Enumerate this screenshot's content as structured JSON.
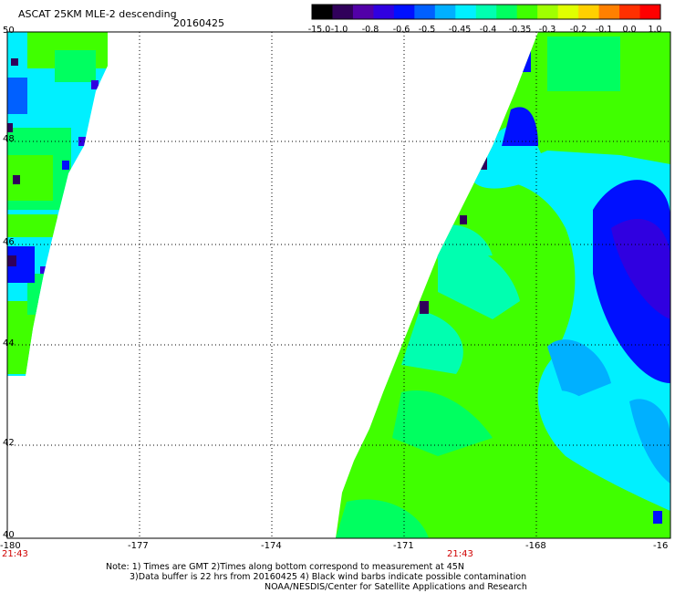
{
  "header": {
    "title": "ASCAT 25KM MLE-2 descending",
    "date": "20160425"
  },
  "colorbar": {
    "labels": [
      "-15.0",
      "-1.0",
      "-0.8",
      "-0.6",
      "-0.5",
      "-0.45",
      "-0.4",
      "-0.35",
      "-0.3",
      "-0.2",
      "-0.1",
      "0.0",
      "1.0"
    ],
    "colors": [
      "#000000",
      "#30005a",
      "#5200a8",
      "#3000e0",
      "#0010ff",
      "#0060ff",
      "#00b0ff",
      "#00f0ff",
      "#00ffb0",
      "#00ff60",
      "#40ff00",
      "#a0ff00",
      "#e0ff00",
      "#ffd000",
      "#ff8000",
      "#ff3000",
      "#ff0000"
    ]
  },
  "axes": {
    "lon_ticks": [
      "-180",
      "-177",
      "-174",
      "-171",
      "-168",
      "-16"
    ],
    "lat_ticks": [
      "50",
      "48",
      "46",
      "44",
      "42",
      "40"
    ],
    "time_labels": [
      "21:43",
      "21:43"
    ]
  },
  "notes": {
    "line1": "Note: 1) Times are GMT 2)Times along bottom correspond to measurement at 45N",
    "line2": "3)Data buffer is 22 hrs from 20160425 4) Black wind barbs indicate possible contamination",
    "line3": "NOAA/NESDIS/Center for Satellite Applications and Research"
  }
}
